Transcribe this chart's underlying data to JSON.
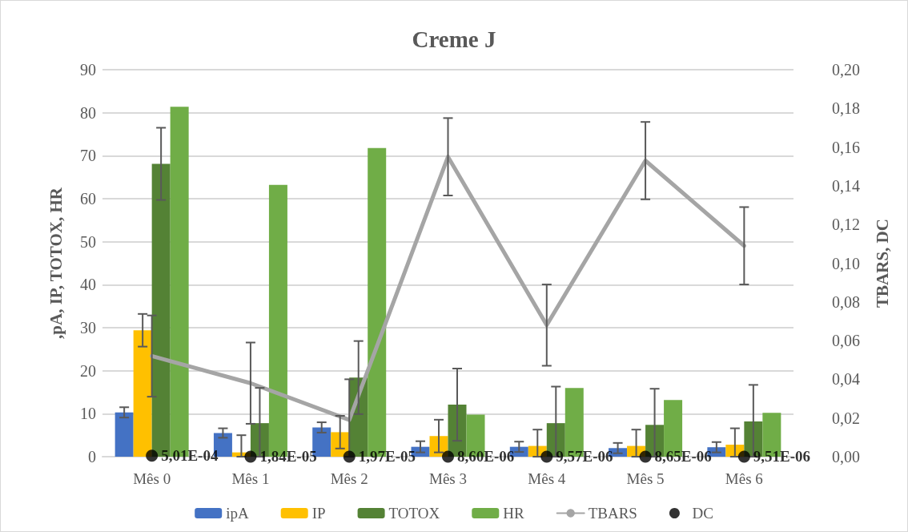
{
  "chart_data": {
    "type": "bar",
    "title": "Creme J",
    "ylabel": ",pA, IP, TOTOX, HR",
    "y2label": "TBARS, DC",
    "categories": [
      "Mês 0",
      "Mês 1",
      "Mês 2",
      "Mês 3",
      "Mês 4",
      "Mês 5",
      "Mês 6"
    ],
    "series": [
      {
        "name": "ipA",
        "color": "#4472c4",
        "values": [
          10.3,
          5.5,
          6.8,
          2.3,
          2.3,
          2.0,
          2.2
        ],
        "errors": [
          1.2,
          1.1,
          1.2,
          1.3,
          1.2,
          1.2,
          1.2
        ]
      },
      {
        "name": "IP",
        "color": "#ffc000",
        "values": [
          29.4,
          1.0,
          5.7,
          4.8,
          2.5,
          2.5,
          2.8
        ],
        "errors": [
          3.8,
          [
            0,
            5.0
          ],
          3.8,
          3.8,
          [
            0,
            6.3
          ],
          [
            0,
            6.3
          ],
          [
            0,
            6.6
          ]
        ]
      },
      {
        "name": "TOTOX",
        "color": "#548235",
        "values": [
          68.1,
          7.8,
          18.4,
          12.1,
          7.8,
          7.4,
          8.2
        ],
        "errors": [
          8.4,
          [
            0,
            16.0
          ],
          8.5,
          8.4,
          [
            0,
            16.3
          ],
          [
            0,
            15.8
          ],
          [
            0,
            16.7
          ]
        ]
      },
      {
        "name": "HR",
        "color": "#70ad47",
        "values": [
          81.4,
          63.2,
          71.8,
          9.8,
          16.0,
          13.2,
          10.2
        ]
      },
      {
        "name": "TBARS",
        "type": "line",
        "axis": "y2",
        "color": "#a5a5a5",
        "marker": "none",
        "values": [
          0.052,
          0.038,
          0.019,
          0.155,
          0.068,
          0.153,
          0.109
        ],
        "errors": [
          0.021,
          0.021,
          [
            0,
            0.04
          ],
          0.02,
          0.021,
          0.02,
          0.02
        ]
      },
      {
        "name": "DC",
        "type": "scatter",
        "axis": "y2",
        "color": "#000000",
        "marker": "circle",
        "values": [
          0.000501,
          1.84e-05,
          1.97e-05,
          8.6e-06,
          9.57e-06,
          8.65e-06,
          9.51e-06
        ],
        "value_labels": [
          "5,01E-04",
          "1,84E-05",
          "1,97E-05",
          "8,60E-06",
          "9,57E-06",
          "8,65E-06",
          "9,51E-06"
        ]
      }
    ],
    "ylim": [
      0,
      90
    ],
    "yticks": [
      0,
      10,
      20,
      30,
      40,
      50,
      60,
      70,
      80,
      90
    ],
    "y2lim": [
      0,
      0.2
    ],
    "y2ticks": [
      {
        "value": 0,
        "label": "0,00"
      },
      {
        "value": 0.02,
        "label": "0,02"
      },
      {
        "value": 0.04,
        "label": "0,04"
      },
      {
        "value": 0.06,
        "label": "0,06"
      },
      {
        "value": 0.08,
        "label": "0,08"
      },
      {
        "value": 0.1,
        "label": "0,10"
      },
      {
        "value": 0.12,
        "label": "0,12"
      },
      {
        "value": 0.14,
        "label": "0,14"
      },
      {
        "value": 0.16,
        "label": "0,16"
      },
      {
        "value": 0.18,
        "label": "0,18"
      },
      {
        "value": 0.2,
        "label": "0,20"
      }
    ],
    "grid": "y",
    "legend": "bottom"
  }
}
